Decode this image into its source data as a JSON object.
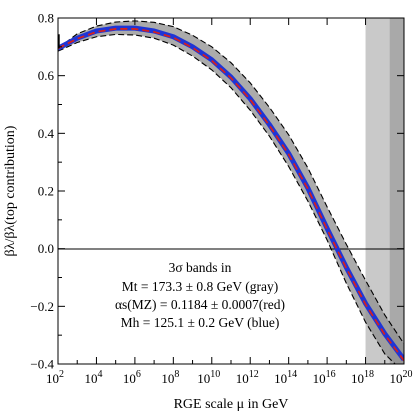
{
  "chart_data": {
    "type": "line",
    "title": "",
    "xlabel": "RGE scale μ in GeV",
    "ylabel": "βλ/βλ(top contribution)",
    "x_scale": "log10",
    "xlim_log10": [
      2,
      20
    ],
    "ylim": [
      -0.4,
      0.8
    ],
    "x_tick_exponents": [
      "2",
      "4",
      "6",
      "8",
      "10",
      "12",
      "14",
      "16",
      "18",
      "20"
    ],
    "y_ticks": [
      "0.8",
      "0.6",
      "0.4",
      "0.2",
      "0.0",
      "−0.2",
      "−0.4"
    ],
    "grid": false,
    "reference_line_y": 0.0,
    "shaded_regions_log10_x": [
      {
        "from": 18.0,
        "to": 19.25,
        "color": "#c9c9c9"
      },
      {
        "from": 19.25,
        "to": 20.0,
        "color": "#a9a9a9"
      }
    ],
    "x_log10": [
      2,
      3,
      4,
      5,
      6,
      7,
      8,
      9,
      10,
      11,
      12,
      13,
      14,
      15,
      16,
      17,
      18,
      19,
      20
    ],
    "series": [
      {
        "color": "#1f35d6",
        "values": [
          0.695,
          0.73,
          0.755,
          0.765,
          0.765,
          0.755,
          0.735,
          0.7,
          0.655,
          0.595,
          0.52,
          0.43,
          0.33,
          0.21,
          0.07,
          -0.065,
          -0.19,
          -0.295,
          -0.385
        ]
      },
      {
        "color": "#d42020",
        "dash": true,
        "values": [
          0.695,
          0.728,
          0.752,
          0.762,
          0.762,
          0.752,
          0.732,
          0.697,
          0.652,
          0.592,
          0.517,
          0.427,
          0.327,
          0.207,
          0.067,
          -0.068,
          -0.193,
          -0.298,
          -0.388
        ]
      }
    ],
    "gray_band_upper": [
      0.695,
      0.745,
      0.772,
      0.786,
      0.79,
      0.785,
      0.77,
      0.74,
      0.7,
      0.645,
      0.575,
      0.49,
      0.395,
      0.28,
      0.145,
      0.015,
      -0.11,
      -0.23,
      -0.33
    ],
    "gray_band_lower": [
      0.685,
      0.715,
      0.735,
      0.743,
      0.741,
      0.73,
      0.706,
      0.668,
      0.62,
      0.558,
      0.48,
      0.39,
      0.285,
      0.165,
      0.03,
      -0.12,
      -0.255,
      -0.365,
      -0.43
    ],
    "annotations": [
      "3σ bands in",
      "Mt = 173.3 ± 0.8 GeV (gray)",
      "αs(MZ) = 0.1184 ± 0.0007(red)",
      "Mh = 125.1 ± 0.2 GeV (blue)"
    ]
  }
}
